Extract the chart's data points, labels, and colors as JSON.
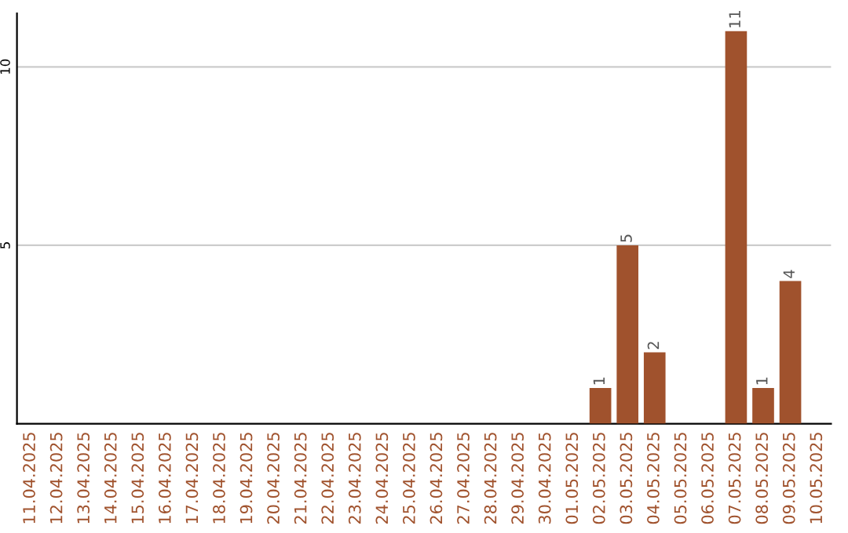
{
  "chart_data": {
    "type": "bar",
    "categories": [
      "11.04.2025",
      "12.04.2025",
      "13.04.2025",
      "14.04.2025",
      "15.04.2025",
      "16.04.2025",
      "17.04.2025",
      "18.04.2025",
      "19.04.2025",
      "20.04.2025",
      "21.04.2025",
      "22.04.2025",
      "23.04.2025",
      "24.04.2025",
      "25.04.2025",
      "26.04.2025",
      "27.04.2025",
      "28.04.2025",
      "29.04.2025",
      "30.04.2025",
      "01.05.2025",
      "02.05.2025",
      "03.05.2025",
      "04.05.2025",
      "05.05.2025",
      "06.05.2025",
      "07.05.2025",
      "08.05.2025",
      "09.05.2025",
      "10.05.2025"
    ],
    "values": [
      0,
      0,
      0,
      0,
      0,
      0,
      0,
      0,
      0,
      0,
      0,
      0,
      0,
      0,
      0,
      0,
      0,
      0,
      0,
      0,
      0,
      1,
      5,
      2,
      0,
      0,
      11,
      1,
      4,
      0
    ],
    "value_labels": [
      null,
      null,
      null,
      null,
      null,
      null,
      null,
      null,
      null,
      null,
      null,
      null,
      null,
      null,
      null,
      null,
      null,
      null,
      null,
      null,
      null,
      "1",
      "5",
      "2",
      null,
      null,
      "11",
      "1",
      "4",
      null
    ],
    "color": "#a0522d",
    "ylim": [
      0,
      11.5
    ],
    "yticks": [
      5,
      10
    ],
    "grid": "y"
  }
}
